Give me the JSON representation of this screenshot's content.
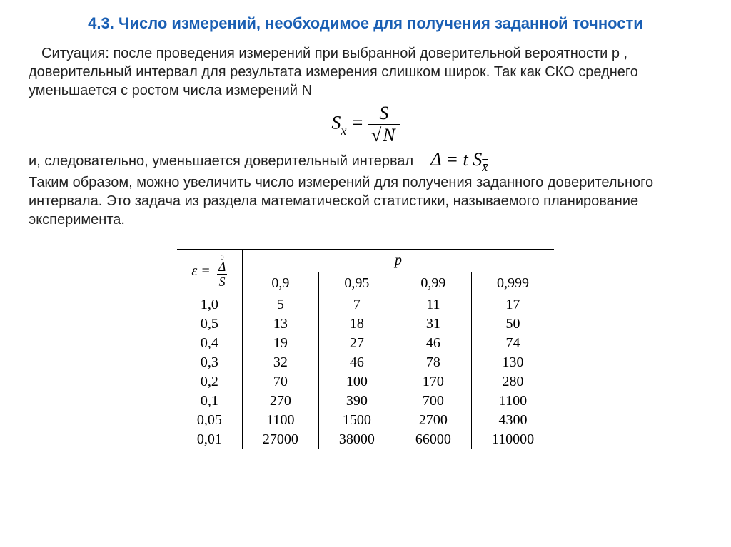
{
  "heading": "4.3. Число измерений, необходимое для получения заданной точности",
  "para1": "Ситуация: после проведения измерений при выбранной доверительной вероятности p , доверительный интервал для результата измерения слишком широк. Так как СКО среднего уменьшается с ростом числа измерений N",
  "para2_a": "и, следовательно, уменьшается доверительный интервал",
  "para2_b": "Таким образом, можно увеличить число измерений для получения заданного доверительного интервала. Это задача из раздела математической статистики, называемого планирование эксперимента.",
  "formula_center": {
    "lhs_base": "S",
    "lhs_sub": "x̄",
    "eq": "=",
    "num": "S",
    "den_sqrt": "N"
  },
  "formula_inline": {
    "delta": "Δ",
    "eq": "=",
    "t": "t S",
    "sub": "x̄"
  },
  "table": {
    "eps_label": "ε =",
    "eps_num_sup": "0",
    "eps_num": "Δ",
    "eps_den": "S",
    "p_label": "p",
    "p_headers": [
      "0,9",
      "0,95",
      "0,99",
      "0,999"
    ],
    "rows": [
      {
        "eps": "1,0",
        "vals": [
          "5",
          "7",
          "11",
          "17"
        ]
      },
      {
        "eps": "0,5",
        "vals": [
          "13",
          "18",
          "31",
          "50"
        ]
      },
      {
        "eps": "0,4",
        "vals": [
          "19",
          "27",
          "46",
          "74"
        ]
      },
      {
        "eps": "0,3",
        "vals": [
          "32",
          "46",
          "78",
          "130"
        ]
      },
      {
        "eps": "0,2",
        "vals": [
          "70",
          "100",
          "170",
          "280"
        ]
      },
      {
        "eps": "0,1",
        "vals": [
          "270",
          "390",
          "700",
          "1100"
        ]
      },
      {
        "eps": "0,05",
        "vals": [
          "1100",
          "1500",
          "2700",
          "4300"
        ]
      },
      {
        "eps": "0,01",
        "vals": [
          "27000",
          "38000",
          "66000",
          "110000"
        ]
      }
    ]
  },
  "colors": {
    "heading": "#1a5fb4",
    "text": "#222222",
    "background": "#ffffff",
    "border": "#000000"
  }
}
